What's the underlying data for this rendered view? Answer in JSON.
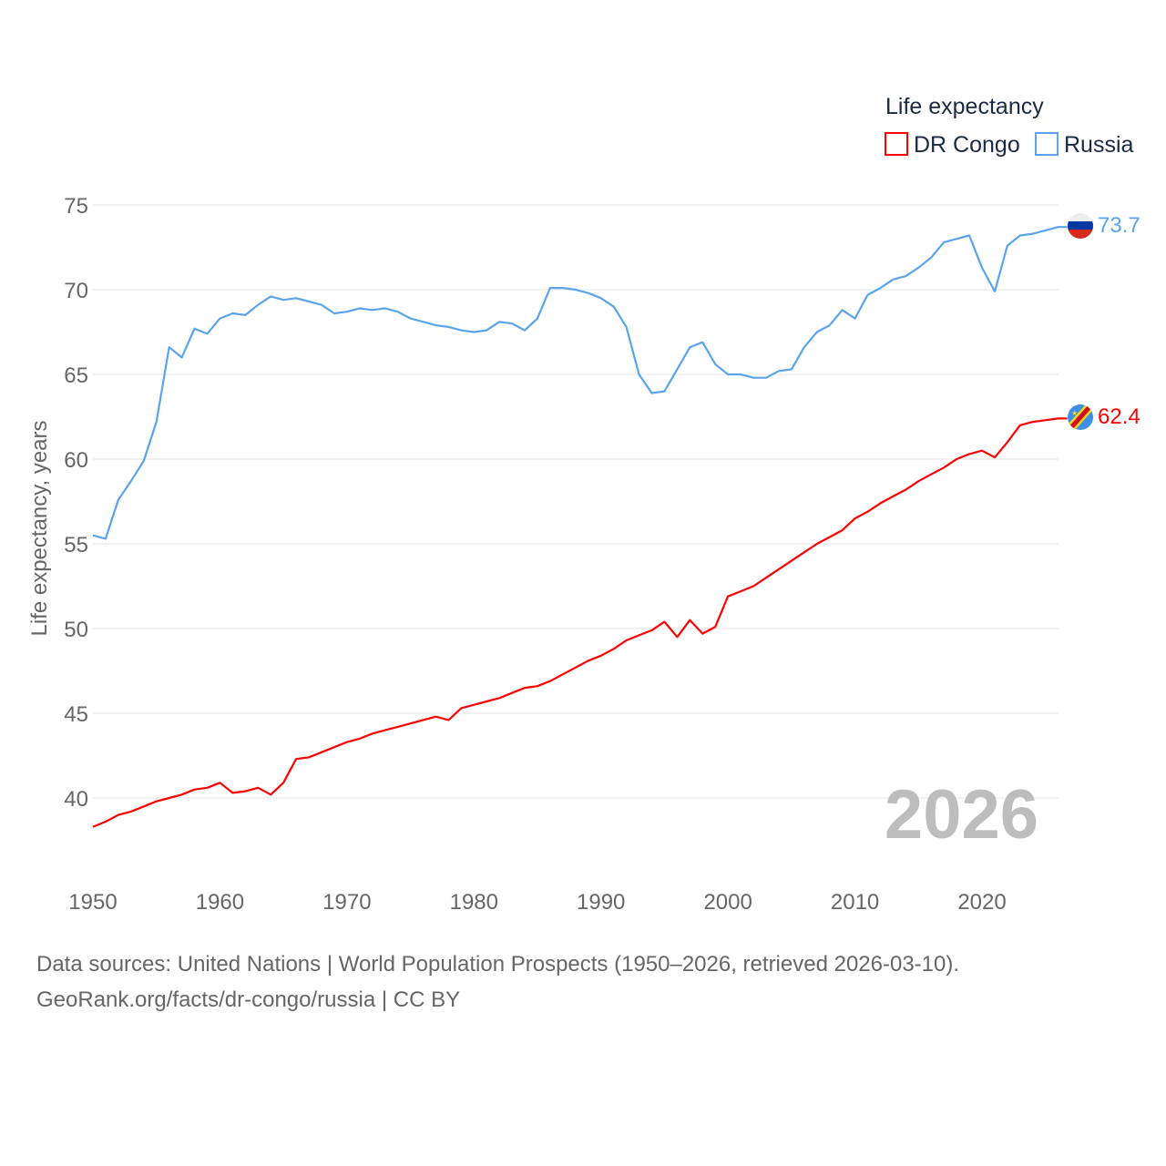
{
  "chart_data": {
    "type": "line",
    "title": "",
    "legend_title": "Life expectancy",
    "legend_position": "top-right",
    "xlabel": "",
    "ylabel": "Life expectancy, years",
    "xlim": [
      1950,
      2026
    ],
    "ylim": [
      37,
      75
    ],
    "x_ticks": [
      1950,
      1960,
      1970,
      1980,
      1990,
      2000,
      2010,
      2020
    ],
    "y_ticks": [
      40,
      45,
      50,
      55,
      60,
      65,
      70,
      75
    ],
    "grid": true,
    "year_watermark": "2026",
    "x_start": 1950,
    "series": [
      {
        "name": "DR Congo",
        "color": "#ff0000",
        "end_label": "62.4",
        "flag": "dr-congo-flag-icon",
        "values": [
          38.3,
          38.6,
          39.0,
          39.2,
          39.5,
          39.8,
          40.0,
          40.2,
          40.5,
          40.6,
          40.9,
          40.3,
          40.4,
          40.6,
          40.2,
          40.9,
          42.3,
          42.4,
          42.7,
          43.0,
          43.3,
          43.5,
          43.8,
          44.0,
          44.2,
          44.4,
          44.6,
          44.8,
          44.6,
          45.3,
          45.5,
          45.7,
          45.9,
          46.2,
          46.5,
          46.6,
          46.9,
          47.3,
          47.7,
          48.1,
          48.4,
          48.8,
          49.3,
          49.6,
          49.9,
          50.4,
          49.5,
          50.5,
          49.7,
          50.1,
          51.9,
          52.2,
          52.5,
          53.0,
          53.5,
          54.0,
          54.5,
          55.0,
          55.4,
          55.8,
          56.5,
          56.9,
          57.4,
          57.8,
          58.2,
          58.7,
          59.1,
          59.5,
          60.0,
          60.3,
          60.5,
          60.1,
          61.0,
          62.0,
          62.2,
          62.3,
          62.4
        ]
      },
      {
        "name": "Russia",
        "color": "#5ba4ec",
        "end_label": "73.7",
        "flag": "russia-flag-icon",
        "values": [
          55.5,
          55.3,
          57.6,
          58.7,
          59.9,
          62.2,
          66.6,
          66.0,
          67.7,
          67.4,
          68.3,
          68.6,
          68.5,
          69.1,
          69.6,
          69.4,
          69.5,
          69.3,
          69.1,
          68.6,
          68.7,
          68.9,
          68.8,
          68.9,
          68.7,
          68.3,
          68.1,
          67.9,
          67.8,
          67.6,
          67.5,
          67.6,
          68.1,
          68.0,
          67.6,
          68.3,
          70.1,
          70.1,
          70.0,
          69.8,
          69.5,
          69.0,
          67.8,
          65.0,
          63.9,
          64.0,
          65.3,
          66.6,
          66.9,
          65.6,
          65.0,
          65.0,
          64.8,
          64.8,
          65.2,
          65.3,
          66.6,
          67.5,
          67.9,
          68.8,
          68.3,
          69.7,
          70.1,
          70.6,
          70.8,
          71.3,
          71.9,
          72.8,
          73.0,
          73.2,
          71.3,
          69.9,
          72.6,
          73.2,
          73.3,
          73.5,
          73.7
        ]
      }
    ]
  },
  "footer": {
    "line1": "Data sources: United Nations | World Population Prospects (1950–2026, retrieved 2026-03-10).",
    "line2": "GeoRank.org/facts/dr-congo/russia | CC BY"
  }
}
